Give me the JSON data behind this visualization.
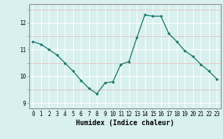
{
  "x": [
    0,
    1,
    2,
    3,
    4,
    5,
    6,
    7,
    8,
    9,
    10,
    11,
    12,
    13,
    14,
    15,
    16,
    17,
    18,
    19,
    20,
    21,
    22,
    23
  ],
  "y": [
    11.3,
    11.2,
    11.0,
    10.8,
    10.5,
    10.2,
    9.85,
    9.55,
    9.35,
    9.75,
    9.8,
    10.45,
    10.55,
    11.45,
    12.3,
    12.25,
    12.25,
    11.6,
    11.3,
    10.95,
    10.75,
    10.45,
    10.2,
    9.9
  ],
  "xlim": [
    -0.5,
    23.5
  ],
  "ylim": [
    8.8,
    12.7
  ],
  "yticks": [
    9,
    10,
    11,
    12
  ],
  "xticks": [
    0,
    1,
    2,
    3,
    4,
    5,
    6,
    7,
    8,
    9,
    10,
    11,
    12,
    13,
    14,
    15,
    16,
    17,
    18,
    19,
    20,
    21,
    22,
    23
  ],
  "xlabel": "Humidex (Indice chaleur)",
  "line_color": "#1a7a6e",
  "bg_color": "#d8f0ee",
  "grid_major_color": "#ffffff",
  "grid_minor_color": "#e8b0b0",
  "axis_color": "#888888",
  "xlabel_fontsize": 7,
  "tick_fontsize": 5.5
}
